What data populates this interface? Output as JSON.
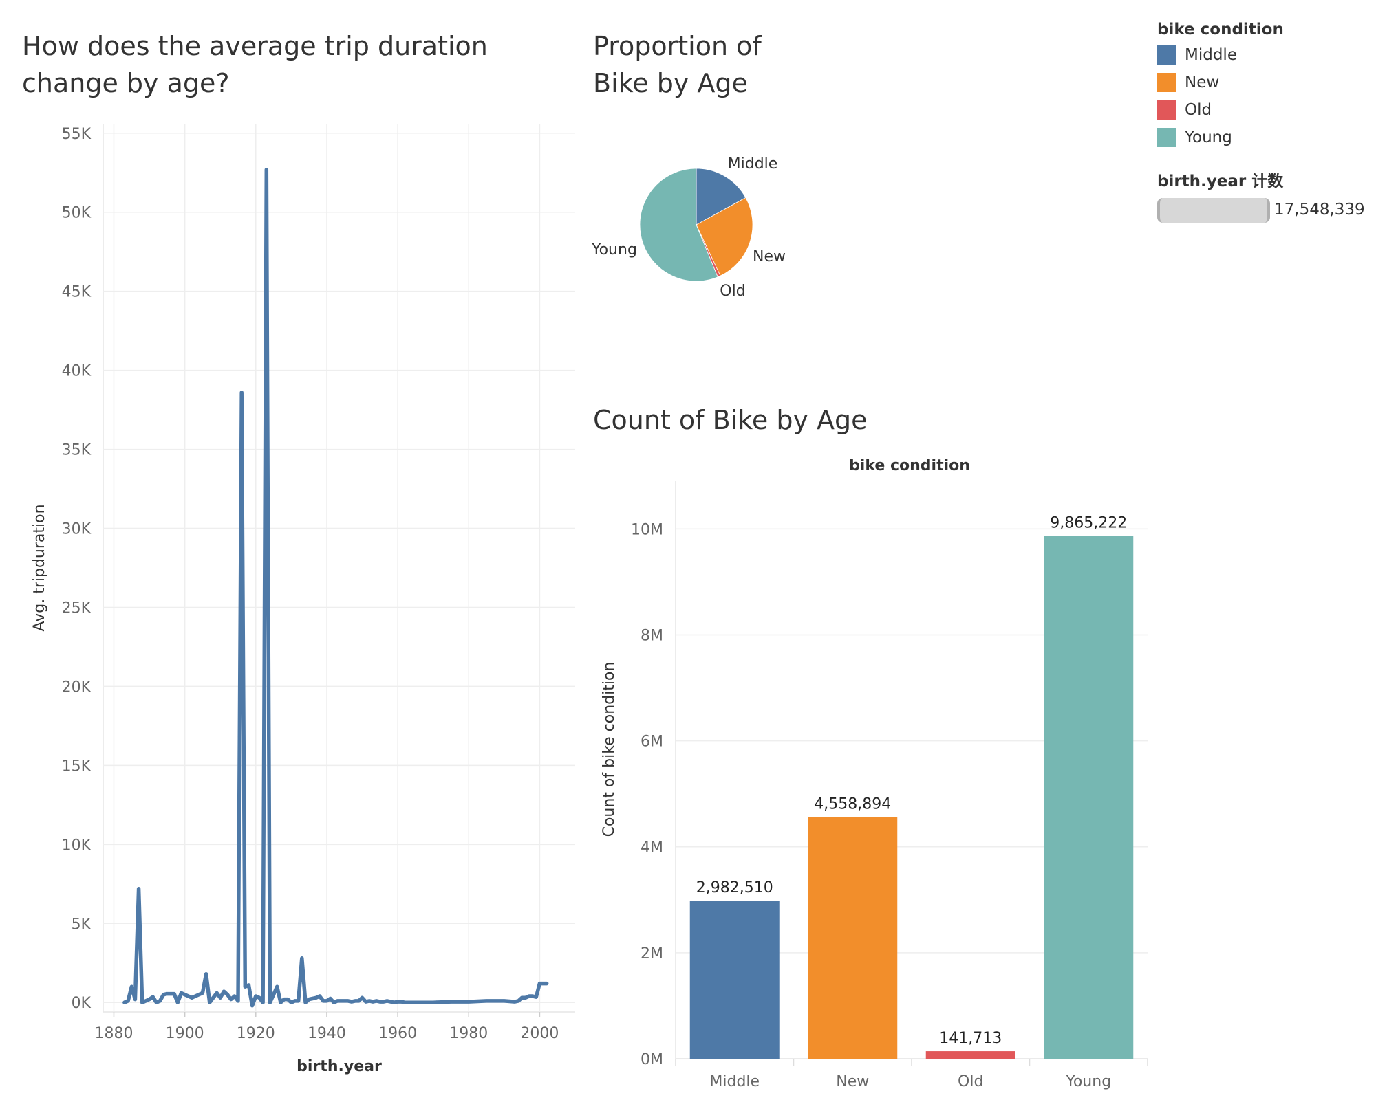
{
  "chart_data": [
    {
      "type": "line",
      "title_lines": [
        "How does the average trip duration",
        "change by age?"
      ],
      "xlabel": "birth.year",
      "ylabel": "Avg. tripduration",
      "xlim": [
        1877,
        2010
      ],
      "ylim": [
        -600,
        55600
      ],
      "x_ticks": [
        1880,
        1900,
        1920,
        1940,
        1960,
        1980,
        2000
      ],
      "y_ticks": [
        0,
        5000,
        10000,
        15000,
        20000,
        25000,
        30000,
        35000,
        40000,
        45000,
        50000,
        55000
      ],
      "y_tick_labels": [
        "0K",
        "5K",
        "10K",
        "15K",
        "20K",
        "25K",
        "30K",
        "35K",
        "40K",
        "45K",
        "50K",
        "55K"
      ],
      "color": "#4e79a7",
      "series": [
        {
          "x": [
            1883,
            1884,
            1885,
            1886,
            1887,
            1888,
            1889,
            1890,
            1891,
            1892,
            1893,
            1894,
            1895,
            1896,
            1897,
            1898,
            1899,
            1900,
            1901,
            1902,
            1905,
            1906,
            1907,
            1909,
            1910,
            1911,
            1912,
            1913,
            1914,
            1915,
            1916,
            1917,
            1918,
            1919,
            1920,
            1921,
            1922,
            1923,
            1924,
            1925,
            1926,
            1927,
            1928,
            1929,
            1930,
            1931,
            1932,
            1933,
            1934,
            1935,
            1936,
            1937,
            1938,
            1939,
            1940,
            1941,
            1942,
            1943,
            1944,
            1945,
            1946,
            1947,
            1948,
            1949,
            1950,
            1951,
            1952,
            1953,
            1954,
            1955,
            1956,
            1957,
            1958,
            1959,
            1960,
            1961,
            1962,
            1963,
            1964,
            1965,
            1970,
            1975,
            1980,
            1985,
            1990,
            1993,
            1994,
            1995,
            1996,
            1997,
            1998,
            1999,
            2000,
            2001,
            2002
          ],
          "y": [
            0,
            100,
            1000,
            200,
            7200,
            0,
            100,
            200,
            350,
            0,
            100,
            500,
            550,
            550,
            550,
            0,
            600,
            500,
            400,
            300,
            600,
            1800,
            0,
            600,
            300,
            700,
            500,
            200,
            400,
            100,
            38600,
            1000,
            1100,
            -200,
            400,
            300,
            0,
            52700,
            0,
            500,
            1000,
            0,
            200,
            200,
            0,
            100,
            100,
            2800,
            0,
            200,
            250,
            300,
            400,
            100,
            100,
            250,
            0,
            100,
            100,
            100,
            100,
            50,
            100,
            100,
            300,
            50,
            100,
            50,
            100,
            50,
            50,
            100,
            50,
            0,
            50,
            50,
            0,
            0,
            0,
            0,
            0,
            50,
            50,
            100,
            100,
            50,
            100,
            300,
            300,
            400,
            400,
            350,
            1200,
            1200,
            1200
          ]
        }
      ]
    },
    {
      "type": "pie",
      "title_lines": [
        "Proportion of",
        "Bike by Age"
      ],
      "categories": [
        "Middle",
        "New",
        "Old",
        "Young"
      ],
      "values": [
        2982510,
        4558894,
        141713,
        9865222
      ],
      "colors": [
        "#4e79a7",
        "#f28e2b",
        "#e15759",
        "#76b7b2"
      ]
    },
    {
      "type": "bar",
      "title_lines": [
        "Count of Bike by Age"
      ],
      "header": "bike condition",
      "ylabel": "Count of bike condition",
      "categories": [
        "Middle",
        "New",
        "Old",
        "Young"
      ],
      "values": [
        2982510,
        4558894,
        141713,
        9865222
      ],
      "value_labels": [
        "2,982,510",
        "4,558,894",
        "141,713",
        "9,865,222"
      ],
      "colors": [
        "#4e79a7",
        "#f28e2b",
        "#e15759",
        "#76b7b2"
      ],
      "ylim": [
        0,
        10900000
      ],
      "y_ticks": [
        0,
        2000000,
        4000000,
        6000000,
        8000000,
        10000000
      ],
      "y_tick_labels": [
        "0M",
        "2M",
        "4M",
        "6M",
        "8M",
        "10M"
      ]
    }
  ],
  "legend": {
    "title": "bike condition",
    "items": [
      {
        "label": "Middle",
        "color": "#4e79a7"
      },
      {
        "label": "New",
        "color": "#f28e2b"
      },
      {
        "label": "Old",
        "color": "#e15759"
      },
      {
        "label": "Young",
        "color": "#76b7b2"
      }
    ]
  },
  "size_legend": {
    "title": "birth.year 计数",
    "value": "17,548,339"
  }
}
